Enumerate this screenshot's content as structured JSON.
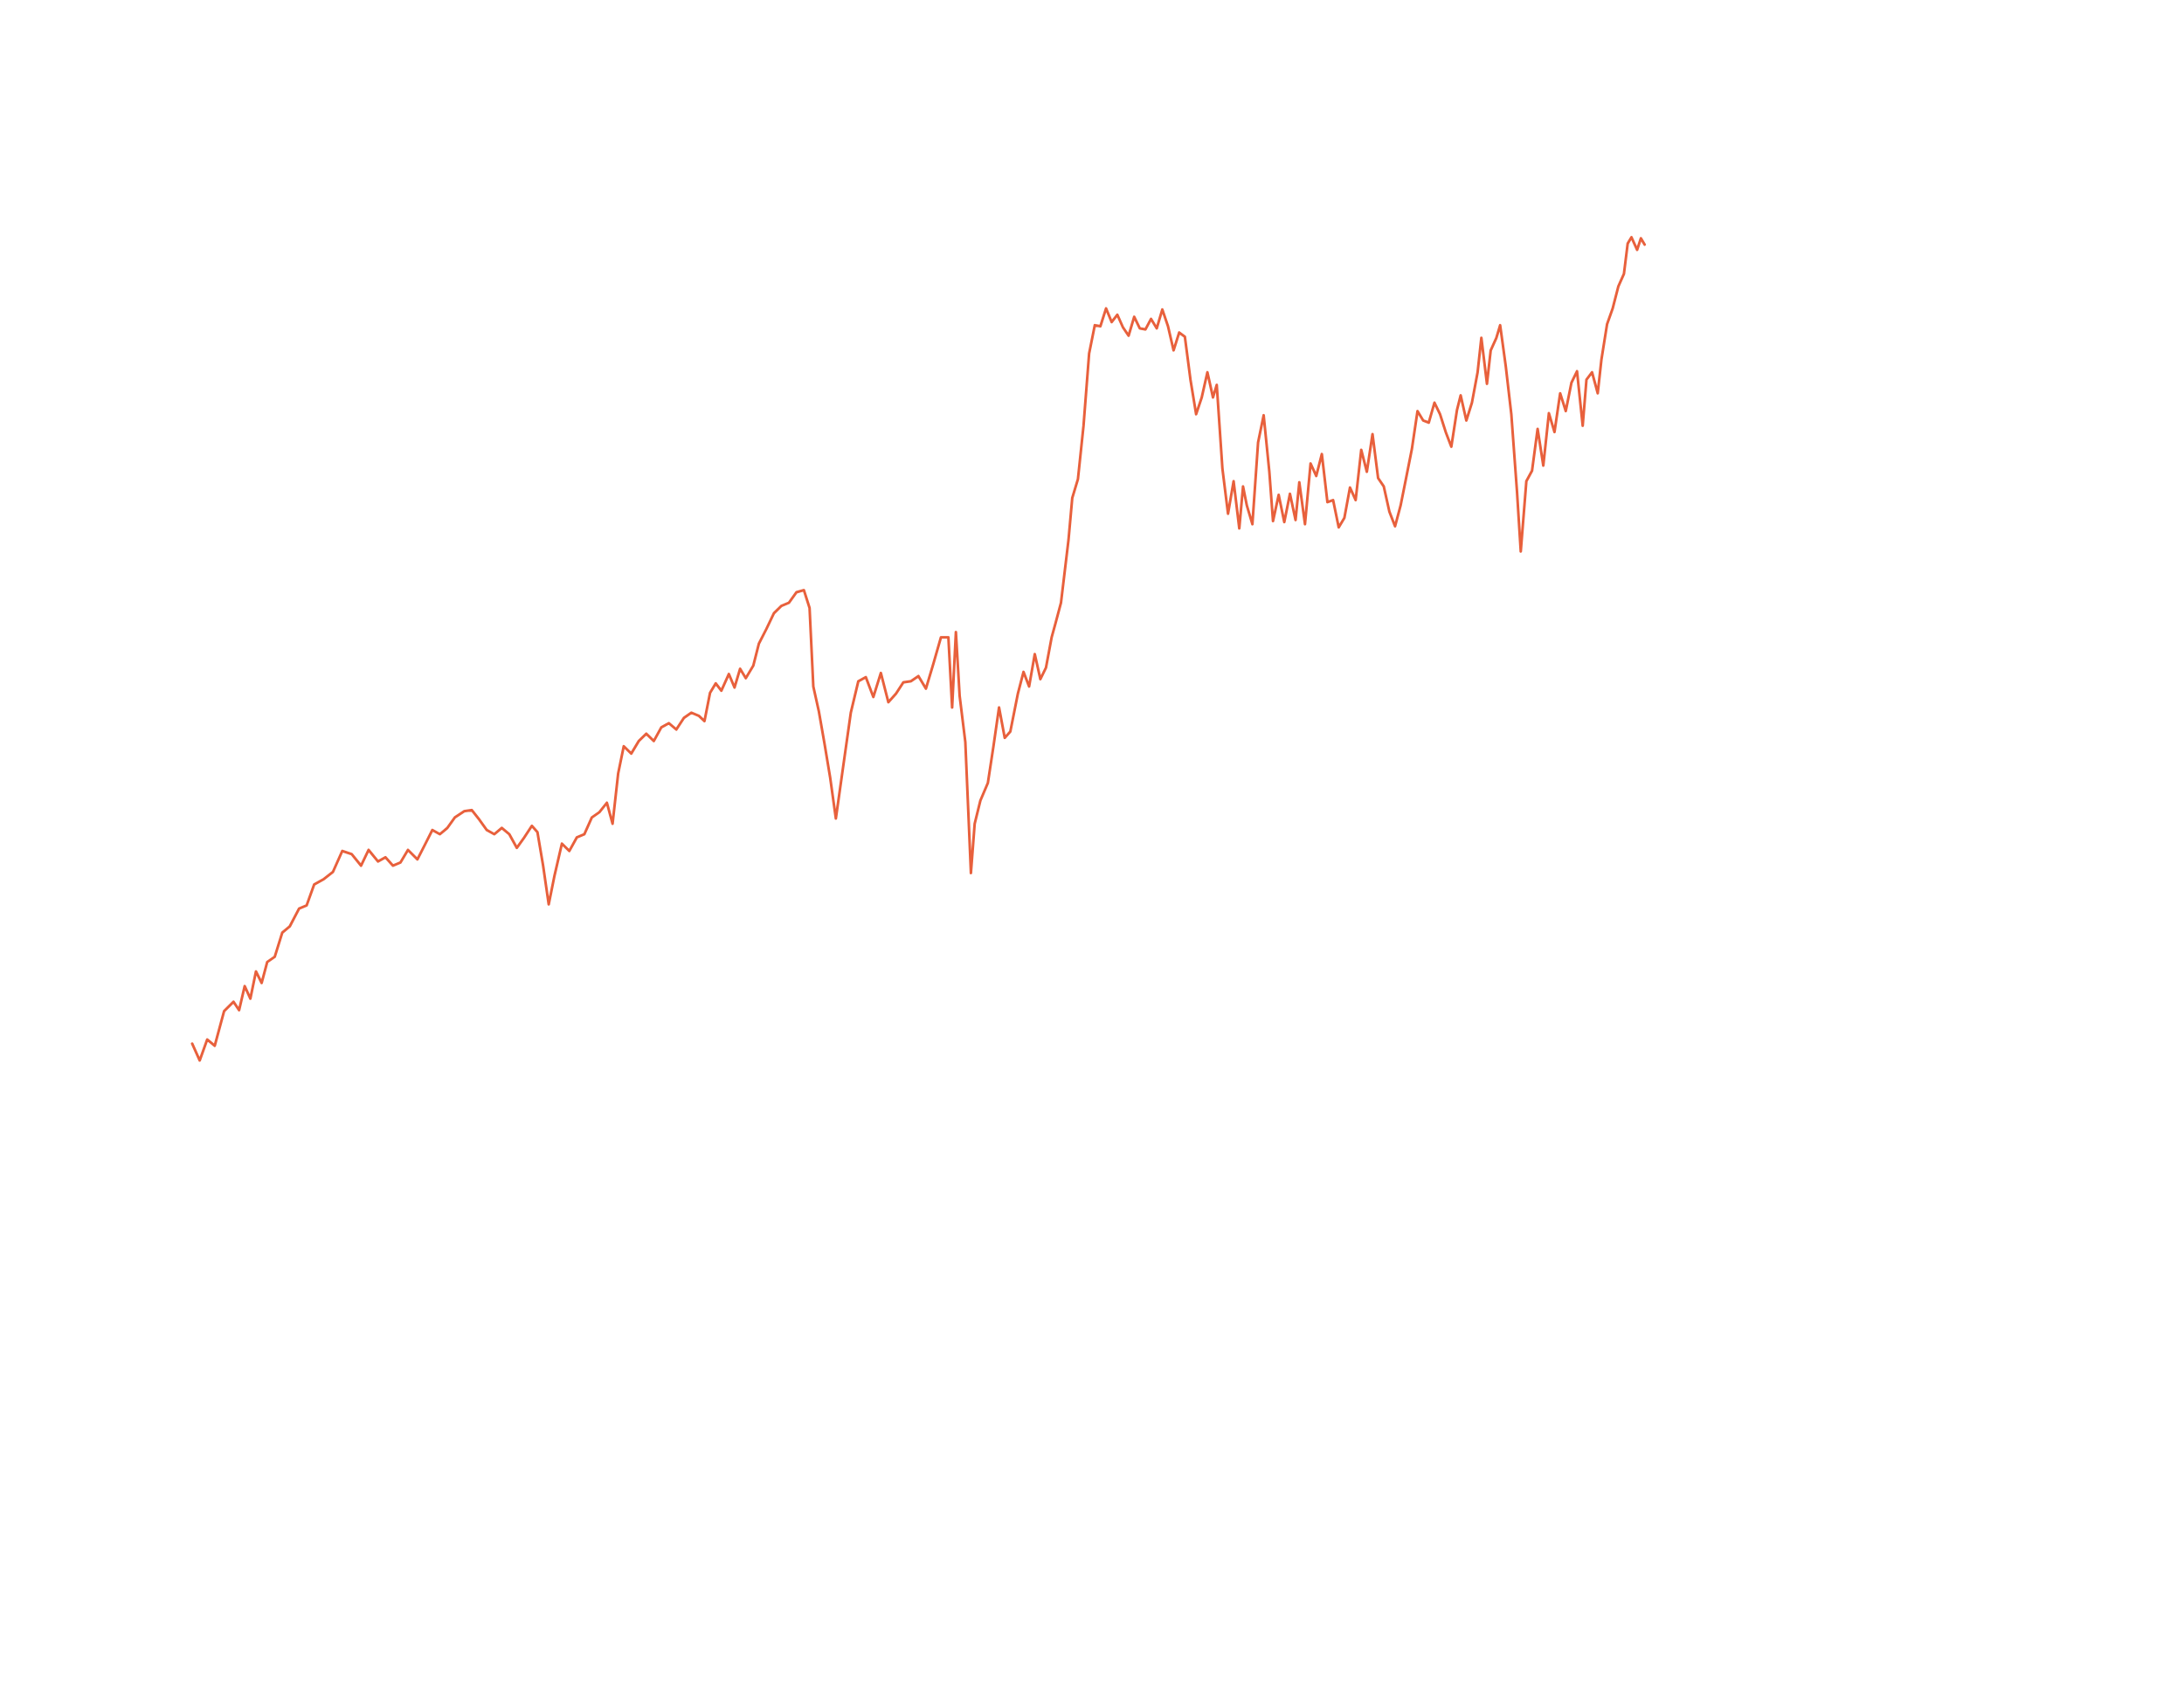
{
  "chart_data": {
    "type": "line",
    "title": "",
    "xlabel": "",
    "ylabel": "",
    "grid": false,
    "legend": "none",
    "axes_visible": false,
    "xlim": [
      0,
      1000
    ],
    "ylim": [
      0,
      100
    ],
    "series": [
      {
        "color": "#e8603c",
        "values": [
          [
            0,
            20.2
          ],
          [
            4,
            18.6
          ],
          [
            8,
            20.6
          ],
          [
            12,
            20.0
          ],
          [
            17,
            23.3
          ],
          [
            22,
            24.2
          ],
          [
            25,
            23.4
          ],
          [
            28,
            25.7
          ],
          [
            31,
            24.5
          ],
          [
            34,
            27.1
          ],
          [
            37,
            26.0
          ],
          [
            40,
            28.0
          ],
          [
            44,
            28.5
          ],
          [
            48,
            30.8
          ],
          [
            52,
            31.4
          ],
          [
            57,
            33.1
          ],
          [
            61,
            33.4
          ],
          [
            65,
            35.4
          ],
          [
            70,
            35.9
          ],
          [
            75,
            36.6
          ],
          [
            80,
            38.6
          ],
          [
            85,
            38.3
          ],
          [
            90,
            37.2
          ],
          [
            94,
            38.7
          ],
          [
            99,
            37.6
          ],
          [
            103,
            38.0
          ],
          [
            107,
            37.2
          ],
          [
            111,
            37.5
          ],
          [
            115,
            38.7
          ],
          [
            120,
            37.8
          ],
          [
            124,
            39.2
          ],
          [
            128,
            40.6
          ],
          [
            132,
            40.2
          ],
          [
            136,
            40.8
          ],
          [
            140,
            41.8
          ],
          [
            145,
            42.4
          ],
          [
            149,
            42.5
          ],
          [
            153,
            41.6
          ],
          [
            157,
            40.6
          ],
          [
            161,
            40.2
          ],
          [
            165,
            40.8
          ],
          [
            169,
            40.2
          ],
          [
            173,
            38.9
          ],
          [
            177,
            39.9
          ],
          [
            181,
            41.0
          ],
          [
            184,
            40.4
          ],
          [
            187,
            37.2
          ],
          [
            190,
            33.5
          ],
          [
            193,
            36.2
          ],
          [
            197,
            39.3
          ],
          [
            201,
            38.6
          ],
          [
            205,
            39.9
          ],
          [
            209,
            40.2
          ],
          [
            213,
            41.8
          ],
          [
            217,
            42.3
          ],
          [
            221,
            43.2
          ],
          [
            224,
            41.2
          ],
          [
            227,
            46.0
          ],
          [
            230,
            48.6
          ],
          [
            234,
            47.9
          ],
          [
            238,
            49.1
          ],
          [
            242,
            49.8
          ],
          [
            246,
            49.1
          ],
          [
            250,
            50.4
          ],
          [
            254,
            50.8
          ],
          [
            258,
            50.2
          ],
          [
            262,
            51.3
          ],
          [
            266,
            51.8
          ],
          [
            270,
            51.5
          ],
          [
            273,
            51.0
          ],
          [
            276,
            53.7
          ],
          [
            279,
            54.6
          ],
          [
            282,
            53.9
          ],
          [
            286,
            55.5
          ],
          [
            289,
            54.2
          ],
          [
            292,
            56.0
          ],
          [
            295,
            55.1
          ],
          [
            299,
            56.3
          ],
          [
            302,
            58.4
          ],
          [
            306,
            59.8
          ],
          [
            310,
            61.3
          ],
          [
            314,
            62.0
          ],
          [
            318,
            62.3
          ],
          [
            322,
            63.3
          ],
          [
            326,
            63.5
          ],
          [
            329,
            61.8
          ],
          [
            331,
            54.3
          ],
          [
            334,
            51.9
          ],
          [
            337,
            48.8
          ],
          [
            340,
            45.6
          ],
          [
            343,
            41.7
          ],
          [
            347,
            46.8
          ],
          [
            351,
            51.8
          ],
          [
            355,
            54.8
          ],
          [
            359,
            55.2
          ],
          [
            363,
            53.3
          ],
          [
            367,
            55.6
          ],
          [
            371,
            52.8
          ],
          [
            375,
            53.6
          ],
          [
            379,
            54.7
          ],
          [
            383,
            54.8
          ],
          [
            387,
            55.3
          ],
          [
            391,
            54.1
          ],
          [
            395,
            56.5
          ],
          [
            399,
            59.0
          ],
          [
            403,
            59.0
          ],
          [
            405,
            52.3
          ],
          [
            407,
            59.5
          ],
          [
            409,
            53.4
          ],
          [
            412,
            49.0
          ],
          [
            415,
            36.5
          ],
          [
            417,
            41.2
          ],
          [
            420,
            43.4
          ],
          [
            424,
            45.1
          ],
          [
            427,
            48.6
          ],
          [
            430,
            52.3
          ],
          [
            433,
            49.4
          ],
          [
            436,
            50.0
          ],
          [
            440,
            53.6
          ],
          [
            443,
            55.7
          ],
          [
            446,
            54.3
          ],
          [
            449,
            57.4
          ],
          [
            452,
            55.0
          ],
          [
            455,
            56.1
          ],
          [
            458,
            59.0
          ],
          [
            460,
            60.3
          ],
          [
            463,
            62.3
          ],
          [
            467,
            68.3
          ],
          [
            469,
            72.3
          ],
          [
            472,
            74.1
          ],
          [
            475,
            79.2
          ],
          [
            478,
            86.1
          ],
          [
            481,
            88.8
          ],
          [
            484,
            88.7
          ],
          [
            487,
            90.4
          ],
          [
            490,
            89.1
          ],
          [
            493,
            89.8
          ],
          [
            496,
            88.6
          ],
          [
            499,
            87.8
          ],
          [
            502,
            89.6
          ],
          [
            505,
            88.5
          ],
          [
            508,
            88.4
          ],
          [
            511,
            89.4
          ],
          [
            514,
            88.5
          ],
          [
            517,
            90.3
          ],
          [
            520,
            88.7
          ],
          [
            523,
            86.4
          ],
          [
            526,
            88.1
          ],
          [
            529,
            87.7
          ],
          [
            532,
            83.6
          ],
          [
            535,
            80.3
          ],
          [
            538,
            81.9
          ],
          [
            541,
            84.3
          ],
          [
            544,
            81.9
          ],
          [
            546,
            83.1
          ],
          [
            549,
            75.1
          ],
          [
            552,
            70.8
          ],
          [
            555,
            73.9
          ],
          [
            558,
            69.4
          ],
          [
            560,
            73.4
          ],
          [
            562,
            71.6
          ],
          [
            565,
            69.8
          ],
          [
            568,
            77.6
          ],
          [
            571,
            80.2
          ],
          [
            574,
            74.8
          ],
          [
            576,
            70.1
          ],
          [
            579,
            72.6
          ],
          [
            582,
            70.0
          ],
          [
            585,
            72.7
          ],
          [
            588,
            70.2
          ],
          [
            590,
            73.8
          ],
          [
            593,
            69.8
          ],
          [
            596,
            75.6
          ],
          [
            599,
            74.4
          ],
          [
            602,
            76.5
          ],
          [
            605,
            71.9
          ],
          [
            608,
            72.1
          ],
          [
            611,
            69.5
          ],
          [
            614,
            70.4
          ],
          [
            617,
            73.3
          ],
          [
            620,
            72.1
          ],
          [
            623,
            76.9
          ],
          [
            626,
            74.8
          ],
          [
            629,
            78.4
          ],
          [
            632,
            74.2
          ],
          [
            635,
            73.4
          ],
          [
            638,
            71.0
          ],
          [
            641,
            69.6
          ],
          [
            644,
            71.6
          ],
          [
            647,
            74.3
          ],
          [
            650,
            77.0
          ],
          [
            653,
            80.6
          ],
          [
            656,
            79.7
          ],
          [
            659,
            79.5
          ],
          [
            662,
            81.4
          ],
          [
            665,
            80.3
          ],
          [
            668,
            78.6
          ],
          [
            671,
            77.2
          ],
          [
            674,
            80.7
          ],
          [
            676,
            82.1
          ],
          [
            679,
            79.7
          ],
          [
            682,
            81.4
          ],
          [
            685,
            84.3
          ],
          [
            687,
            87.6
          ],
          [
            690,
            83.2
          ],
          [
            692,
            86.4
          ],
          [
            695,
            87.6
          ],
          [
            697,
            88.8
          ],
          [
            700,
            84.9
          ],
          [
            703,
            80.3
          ],
          [
            706,
            72.9
          ],
          [
            708,
            67.2
          ],
          [
            711,
            73.9
          ],
          [
            714,
            74.9
          ],
          [
            717,
            78.9
          ],
          [
            720,
            75.4
          ],
          [
            723,
            80.4
          ],
          [
            726,
            78.6
          ],
          [
            729,
            82.3
          ],
          [
            732,
            80.6
          ],
          [
            735,
            83.3
          ],
          [
            738,
            84.4
          ],
          [
            741,
            79.2
          ],
          [
            743,
            83.6
          ],
          [
            746,
            84.3
          ],
          [
            749,
            82.3
          ],
          [
            751,
            85.5
          ],
          [
            754,
            88.9
          ],
          [
            757,
            90.4
          ],
          [
            760,
            92.5
          ],
          [
            763,
            93.7
          ],
          [
            765,
            96.6
          ],
          [
            767,
            97.2
          ],
          [
            770,
            96.0
          ],
          [
            772,
            97.1
          ],
          [
            774,
            96.5
          ]
        ]
      }
    ]
  }
}
